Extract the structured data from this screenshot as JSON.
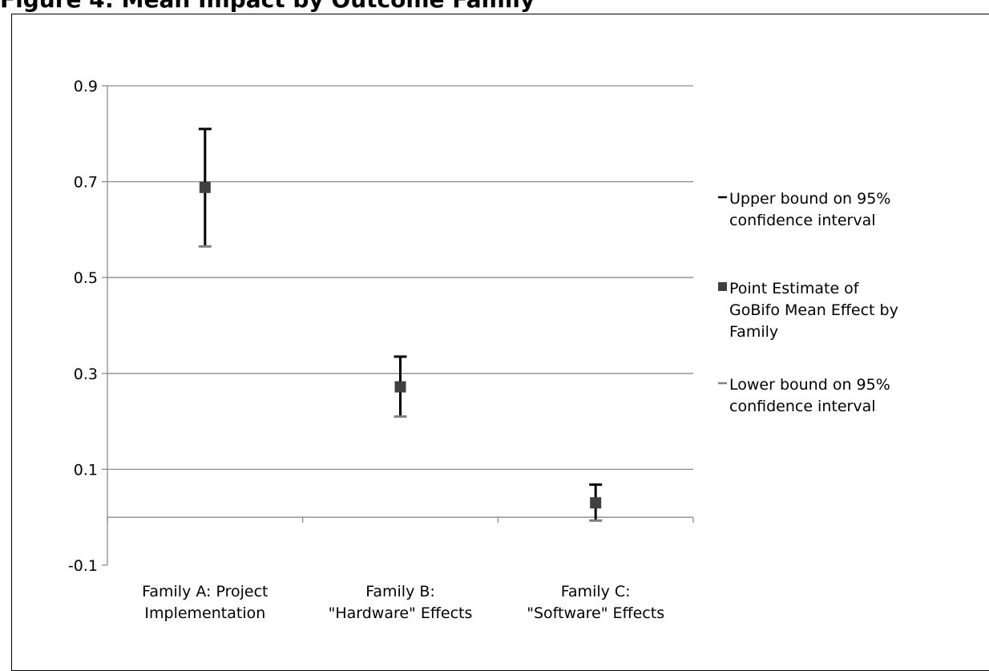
{
  "header": {
    "text": "Figure 4: Mean Impact by Outcome Family"
  },
  "chart_data": {
    "type": "scatter",
    "categories": [
      "Family A: Project Implementation",
      "Family B: \"Hardware\" Effects",
      "Family C: \"Software\" Effects"
    ],
    "category_lines": [
      [
        "Family A: Project",
        "Implementation"
      ],
      [
        "Family B:",
        "\"Hardware\" Effects"
      ],
      [
        "Family C:",
        "\"Software\" Effects"
      ]
    ],
    "series": [
      {
        "name": "Upper bound on 95% confidence interval",
        "values": [
          0.81,
          0.335,
          0.068
        ],
        "color": "#000000"
      },
      {
        "name": "Point Estimate of GoBifo Mean Effect by Family",
        "values": [
          0.688,
          0.272,
          0.03
        ],
        "color": "#404040"
      },
      {
        "name": "Lower bound on 95% confidence interval",
        "values": [
          0.565,
          0.21,
          -0.007
        ],
        "color": "#808080"
      }
    ],
    "legend_lines": [
      [
        "Upper bound on 95%",
        "confidence interval"
      ],
      [
        "Point Estimate of",
        "GoBifo Mean Effect by",
        "Family"
      ],
      [
        "Lower bound on 95%",
        "confidence interval"
      ]
    ],
    "yticks": [
      "0.9",
      "0.7",
      "0.5",
      "0.3",
      "0.1",
      "-0.1"
    ],
    "ylim": [
      -0.1,
      0.9
    ],
    "grid": true,
    "legend": "right",
    "title": "",
    "xlabel": "",
    "ylabel": ""
  }
}
